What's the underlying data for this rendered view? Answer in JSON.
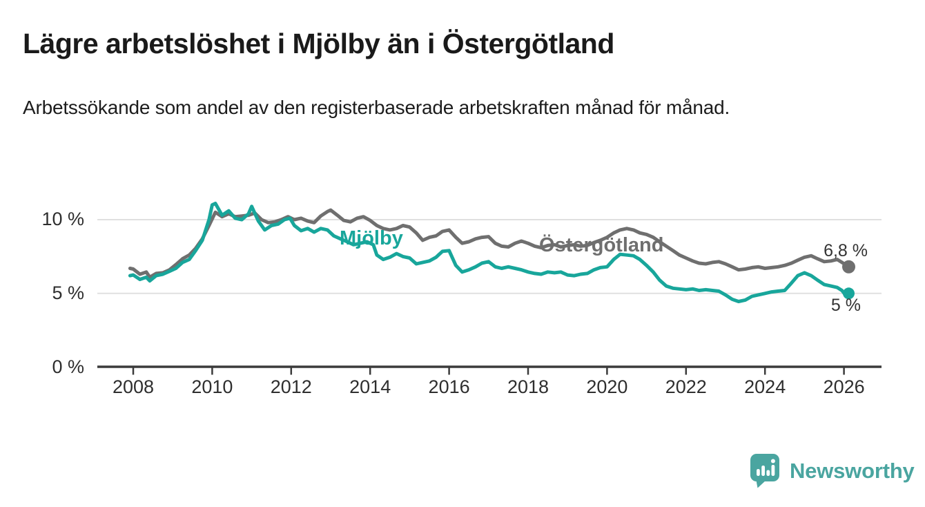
{
  "header": {
    "title": "Lägre arbetslöshet i Mjölby än i Östergötland",
    "subtitle": "Arbetssökande som andel av den registerbaserade arbetskraften månad för månad."
  },
  "chart_data": {
    "type": "line",
    "title": "Lägre arbetslöshet i Mjölby än i Östergötland",
    "subtitle": "Arbetssökande som andel av den registerbaserade arbetskraften månad för månad.",
    "unit": "%",
    "grid": true,
    "legend_position": "inline-labels",
    "x_axis": {
      "ticks": [
        2008,
        2010,
        2012,
        2014,
        2016,
        2018,
        2020,
        2022,
        2024,
        2026
      ],
      "range": [
        2007.1,
        2026.95
      ]
    },
    "y_axis": {
      "ticks": [
        {
          "value": 10,
          "label": "10 %"
        },
        {
          "value": 5,
          "label": "5 %"
        },
        {
          "value": 0,
          "label": "0 %"
        }
      ],
      "range": [
        0,
        12.3
      ]
    },
    "series": [
      {
        "name": "Mjölby",
        "color": "#18a69b",
        "end_label": "5 %",
        "end_value": 5.0,
        "points": [
          [
            2007.92,
            6.2
          ],
          [
            2008.0,
            6.25
          ],
          [
            2008.17,
            5.95
          ],
          [
            2008.33,
            6.1
          ],
          [
            2008.42,
            5.85
          ],
          [
            2008.58,
            6.2
          ],
          [
            2008.75,
            6.3
          ],
          [
            2008.92,
            6.5
          ],
          [
            2009.08,
            6.7
          ],
          [
            2009.25,
            7.1
          ],
          [
            2009.42,
            7.3
          ],
          [
            2009.58,
            7.9
          ],
          [
            2009.75,
            8.6
          ],
          [
            2009.92,
            10.0
          ],
          [
            2010.0,
            11.0
          ],
          [
            2010.08,
            11.1
          ],
          [
            2010.25,
            10.3
          ],
          [
            2010.42,
            10.6
          ],
          [
            2010.58,
            10.1
          ],
          [
            2010.75,
            10.0
          ],
          [
            2010.92,
            10.4
          ],
          [
            2011.0,
            10.9
          ],
          [
            2011.17,
            9.9
          ],
          [
            2011.33,
            9.3
          ],
          [
            2011.5,
            9.6
          ],
          [
            2011.67,
            9.7
          ],
          [
            2011.83,
            10.0
          ],
          [
            2011.97,
            10.1
          ],
          [
            2012.08,
            9.6
          ],
          [
            2012.25,
            9.25
          ],
          [
            2012.42,
            9.4
          ],
          [
            2012.58,
            9.15
          ],
          [
            2012.75,
            9.4
          ],
          [
            2012.92,
            9.3
          ],
          [
            2013.08,
            8.9
          ],
          [
            2013.25,
            8.7
          ],
          [
            2013.42,
            8.5
          ],
          [
            2013.58,
            8.3
          ],
          [
            2013.75,
            8.4
          ],
          [
            2013.92,
            8.5
          ],
          [
            2014.08,
            8.3
          ],
          [
            2014.17,
            7.6
          ],
          [
            2014.33,
            7.3
          ],
          [
            2014.5,
            7.45
          ],
          [
            2014.67,
            7.7
          ],
          [
            2014.83,
            7.5
          ],
          [
            2015.0,
            7.4
          ],
          [
            2015.17,
            7.0
          ],
          [
            2015.33,
            7.1
          ],
          [
            2015.5,
            7.2
          ],
          [
            2015.67,
            7.45
          ],
          [
            2015.83,
            7.85
          ],
          [
            2016.0,
            7.9
          ],
          [
            2016.17,
            6.9
          ],
          [
            2016.33,
            6.45
          ],
          [
            2016.5,
            6.6
          ],
          [
            2016.67,
            6.8
          ],
          [
            2016.83,
            7.05
          ],
          [
            2017.0,
            7.15
          ],
          [
            2017.17,
            6.8
          ],
          [
            2017.33,
            6.7
          ],
          [
            2017.5,
            6.8
          ],
          [
            2017.67,
            6.7
          ],
          [
            2017.83,
            6.6
          ],
          [
            2018.0,
            6.45
          ],
          [
            2018.17,
            6.35
          ],
          [
            2018.33,
            6.3
          ],
          [
            2018.5,
            6.45
          ],
          [
            2018.67,
            6.4
          ],
          [
            2018.83,
            6.45
          ],
          [
            2019.0,
            6.25
          ],
          [
            2019.17,
            6.2
          ],
          [
            2019.33,
            6.3
          ],
          [
            2019.5,
            6.35
          ],
          [
            2019.67,
            6.6
          ],
          [
            2019.83,
            6.75
          ],
          [
            2020.0,
            6.8
          ],
          [
            2020.17,
            7.3
          ],
          [
            2020.33,
            7.65
          ],
          [
            2020.5,
            7.6
          ],
          [
            2020.67,
            7.55
          ],
          [
            2020.83,
            7.3
          ],
          [
            2021.0,
            6.9
          ],
          [
            2021.17,
            6.45
          ],
          [
            2021.33,
            5.9
          ],
          [
            2021.5,
            5.5
          ],
          [
            2021.67,
            5.35
          ],
          [
            2021.83,
            5.3
          ],
          [
            2022.0,
            5.25
          ],
          [
            2022.17,
            5.3
          ],
          [
            2022.33,
            5.2
          ],
          [
            2022.5,
            5.25
          ],
          [
            2022.67,
            5.2
          ],
          [
            2022.83,
            5.15
          ],
          [
            2023.0,
            4.9
          ],
          [
            2023.17,
            4.6
          ],
          [
            2023.33,
            4.45
          ],
          [
            2023.5,
            4.55
          ],
          [
            2023.67,
            4.8
          ],
          [
            2023.83,
            4.9
          ],
          [
            2024.0,
            5.0
          ],
          [
            2024.17,
            5.1
          ],
          [
            2024.33,
            5.15
          ],
          [
            2024.5,
            5.2
          ],
          [
            2024.67,
            5.7
          ],
          [
            2024.83,
            6.2
          ],
          [
            2025.0,
            6.4
          ],
          [
            2025.17,
            6.2
          ],
          [
            2025.33,
            5.9
          ],
          [
            2025.5,
            5.6
          ],
          [
            2025.67,
            5.5
          ],
          [
            2025.83,
            5.4
          ],
          [
            2025.95,
            5.2
          ],
          [
            2026.05,
            4.85
          ],
          [
            2026.12,
            5.0
          ]
        ]
      },
      {
        "name": "Östergötland",
        "color": "#6f6f6f",
        "end_label": "6,8 %",
        "end_value": 6.8,
        "points": [
          [
            2007.92,
            6.7
          ],
          [
            2008.0,
            6.65
          ],
          [
            2008.17,
            6.3
          ],
          [
            2008.33,
            6.45
          ],
          [
            2008.42,
            6.1
          ],
          [
            2008.58,
            6.35
          ],
          [
            2008.75,
            6.4
          ],
          [
            2008.92,
            6.6
          ],
          [
            2009.08,
            6.95
          ],
          [
            2009.25,
            7.35
          ],
          [
            2009.42,
            7.6
          ],
          [
            2009.58,
            8.05
          ],
          [
            2009.75,
            8.7
          ],
          [
            2009.92,
            9.6
          ],
          [
            2010.08,
            10.5
          ],
          [
            2010.25,
            10.2
          ],
          [
            2010.42,
            10.4
          ],
          [
            2010.58,
            10.2
          ],
          [
            2010.75,
            10.25
          ],
          [
            2010.92,
            10.3
          ],
          [
            2011.08,
            10.45
          ],
          [
            2011.25,
            10.0
          ],
          [
            2011.42,
            9.8
          ],
          [
            2011.58,
            9.85
          ],
          [
            2011.75,
            10.0
          ],
          [
            2011.92,
            10.2
          ],
          [
            2012.08,
            10.0
          ],
          [
            2012.25,
            10.1
          ],
          [
            2012.42,
            9.9
          ],
          [
            2012.58,
            9.8
          ],
          [
            2012.75,
            10.25
          ],
          [
            2012.92,
            10.55
          ],
          [
            2013.0,
            10.65
          ],
          [
            2013.17,
            10.3
          ],
          [
            2013.33,
            9.95
          ],
          [
            2013.5,
            9.85
          ],
          [
            2013.67,
            10.1
          ],
          [
            2013.83,
            10.2
          ],
          [
            2014.0,
            9.95
          ],
          [
            2014.17,
            9.6
          ],
          [
            2014.33,
            9.4
          ],
          [
            2014.5,
            9.3
          ],
          [
            2014.67,
            9.4
          ],
          [
            2014.83,
            9.6
          ],
          [
            2015.0,
            9.5
          ],
          [
            2015.17,
            9.1
          ],
          [
            2015.33,
            8.6
          ],
          [
            2015.5,
            8.8
          ],
          [
            2015.67,
            8.9
          ],
          [
            2015.83,
            9.2
          ],
          [
            2016.0,
            9.3
          ],
          [
            2016.17,
            8.8
          ],
          [
            2016.33,
            8.4
          ],
          [
            2016.5,
            8.5
          ],
          [
            2016.67,
            8.7
          ],
          [
            2016.83,
            8.8
          ],
          [
            2017.0,
            8.85
          ],
          [
            2017.17,
            8.4
          ],
          [
            2017.33,
            8.2
          ],
          [
            2017.5,
            8.15
          ],
          [
            2017.67,
            8.4
          ],
          [
            2017.83,
            8.55
          ],
          [
            2018.0,
            8.4
          ],
          [
            2018.17,
            8.2
          ],
          [
            2018.33,
            8.1
          ],
          [
            2018.5,
            8.25
          ],
          [
            2018.67,
            8.3
          ],
          [
            2018.83,
            8.15
          ],
          [
            2019.0,
            8.25
          ],
          [
            2019.17,
            8.3
          ],
          [
            2019.33,
            8.2
          ],
          [
            2019.5,
            8.25
          ],
          [
            2019.67,
            8.45
          ],
          [
            2019.83,
            8.6
          ],
          [
            2020.0,
            8.8
          ],
          [
            2020.17,
            9.1
          ],
          [
            2020.33,
            9.3
          ],
          [
            2020.5,
            9.4
          ],
          [
            2020.67,
            9.3
          ],
          [
            2020.83,
            9.1
          ],
          [
            2021.0,
            9.0
          ],
          [
            2021.17,
            8.8
          ],
          [
            2021.33,
            8.5
          ],
          [
            2021.5,
            8.2
          ],
          [
            2021.67,
            7.9
          ],
          [
            2021.83,
            7.6
          ],
          [
            2022.0,
            7.4
          ],
          [
            2022.17,
            7.2
          ],
          [
            2022.33,
            7.05
          ],
          [
            2022.5,
            7.0
          ],
          [
            2022.67,
            7.1
          ],
          [
            2022.83,
            7.15
          ],
          [
            2023.0,
            7.0
          ],
          [
            2023.17,
            6.8
          ],
          [
            2023.33,
            6.6
          ],
          [
            2023.5,
            6.65
          ],
          [
            2023.67,
            6.75
          ],
          [
            2023.83,
            6.8
          ],
          [
            2024.0,
            6.7
          ],
          [
            2024.17,
            6.75
          ],
          [
            2024.33,
            6.8
          ],
          [
            2024.5,
            6.9
          ],
          [
            2024.67,
            7.05
          ],
          [
            2024.83,
            7.25
          ],
          [
            2025.0,
            7.45
          ],
          [
            2025.17,
            7.55
          ],
          [
            2025.33,
            7.35
          ],
          [
            2025.5,
            7.15
          ],
          [
            2025.67,
            7.2
          ],
          [
            2025.83,
            7.3
          ],
          [
            2025.95,
            7.1
          ],
          [
            2026.12,
            6.8
          ]
        ]
      }
    ],
    "colors": {
      "grid": "#e0e0e0",
      "axis": "#3a3a3a",
      "tick_label": "#2e2e2e",
      "value_label": "#333333"
    }
  },
  "branding": {
    "logo_text": "Newsworthy",
    "logo_color": "#4aa5a0",
    "logo_icon": "speech-bubble-bar-chart-icon"
  }
}
